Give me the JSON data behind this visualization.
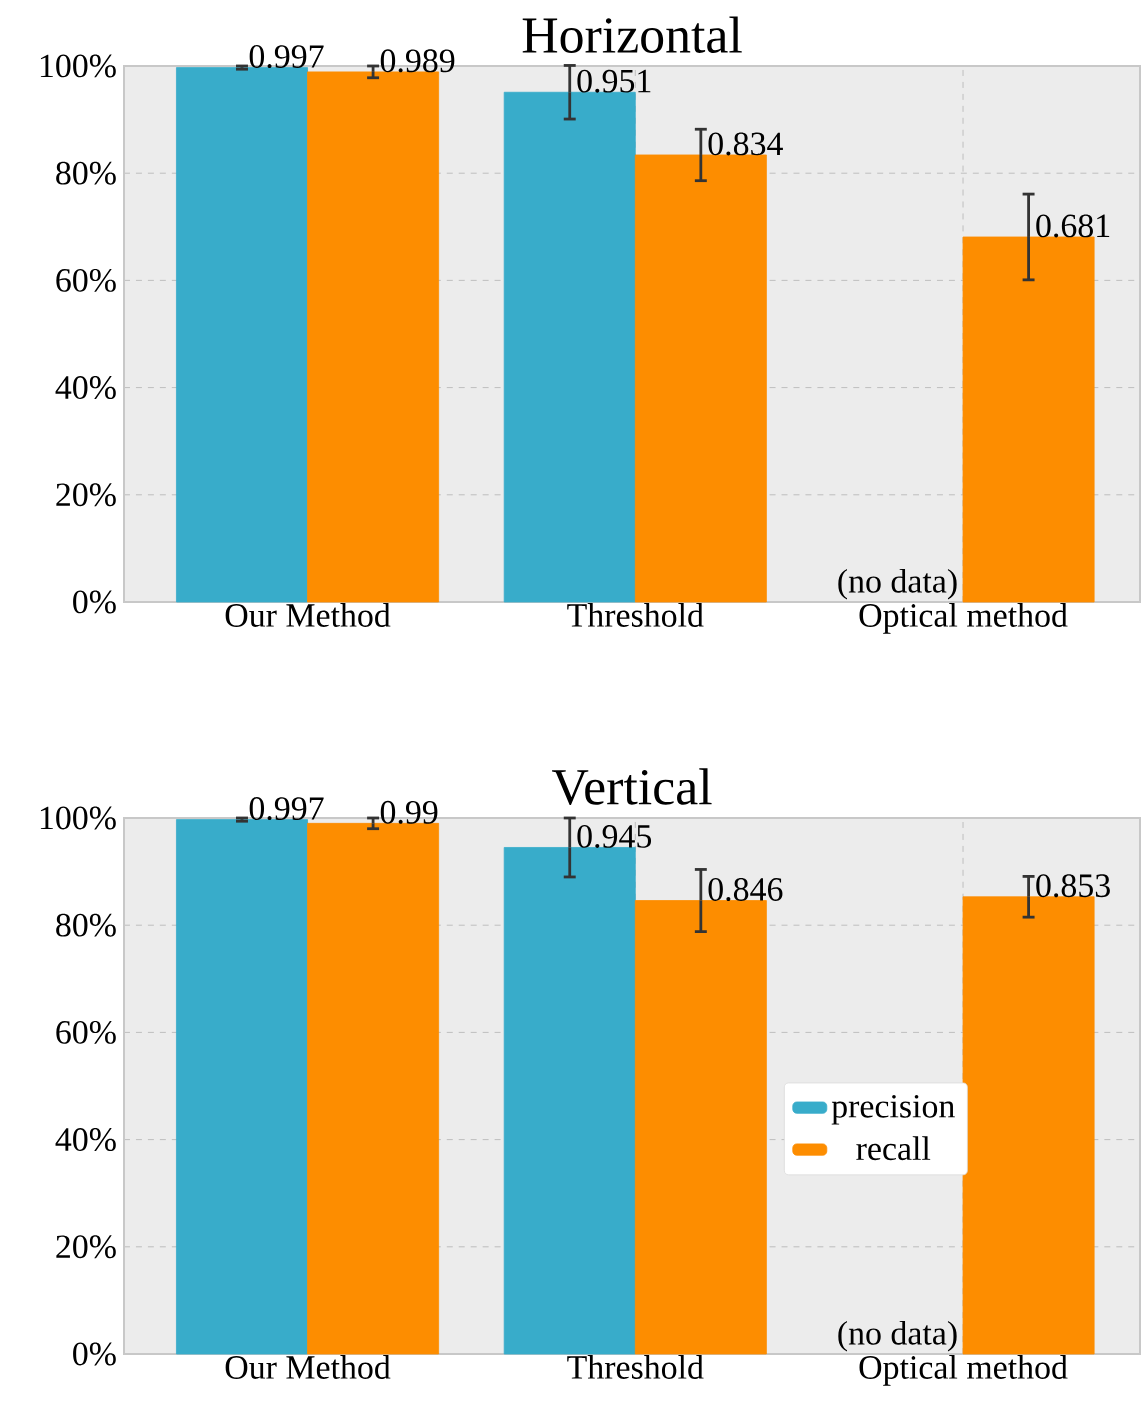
{
  "chart_data": [
    {
      "type": "bar",
      "title": "Horizontal",
      "categories": [
        "Our Method",
        "Threshold",
        "Optical method"
      ],
      "series": [
        {
          "color": "#38acca",
          "values": [
            0.997,
            0.951,
            null
          ],
          "errors": [
            0.003,
            0.05,
            null
          ]
        },
        {
          "color": "#fd8d00",
          "values": [
            0.989,
            0.834,
            0.681
          ],
          "errors": [
            0.011,
            0.048,
            0.08
          ]
        }
      ],
      "ylim": [
        0,
        1
      ],
      "yticks": [
        {
          "value": 0,
          "label": "0%"
        },
        {
          "value": 0.2,
          "label": "20%"
        },
        {
          "value": 0.4,
          "label": "40%"
        },
        {
          "value": 0.6,
          "label": "60%"
        },
        {
          "value": 0.8,
          "label": "80%"
        },
        {
          "value": 1,
          "label": "100%"
        }
      ],
      "grid": true,
      "data_labels": true,
      "annotations": [
        "(no data)"
      ]
    },
    {
      "type": "bar",
      "title": "Vertical",
      "categories": [
        "Our Method",
        "Threshold",
        "Optical method"
      ],
      "series": [
        {
          "name": "precision",
          "color": "#38acca",
          "values": [
            0.997,
            0.945,
            null
          ],
          "errors": [
            0.003,
            0.055,
            null
          ]
        },
        {
          "name": "recall",
          "color": "#fd8d00",
          "values": [
            0.99,
            0.846,
            0.853
          ],
          "errors": [
            0.01,
            0.058,
            0.038
          ]
        }
      ],
      "ylim": [
        0,
        1
      ],
      "yticks": [
        {
          "value": 0,
          "label": "0%"
        },
        {
          "value": 0.2,
          "label": "20%"
        },
        {
          "value": 0.4,
          "label": "40%"
        },
        {
          "value": 0.6,
          "label": "60%"
        },
        {
          "value": 0.8,
          "label": "80%"
        },
        {
          "value": 1,
          "label": "100%"
        }
      ],
      "grid": true,
      "legend": "center right",
      "data_labels": true,
      "annotations": [
        "(no data)"
      ]
    }
  ]
}
